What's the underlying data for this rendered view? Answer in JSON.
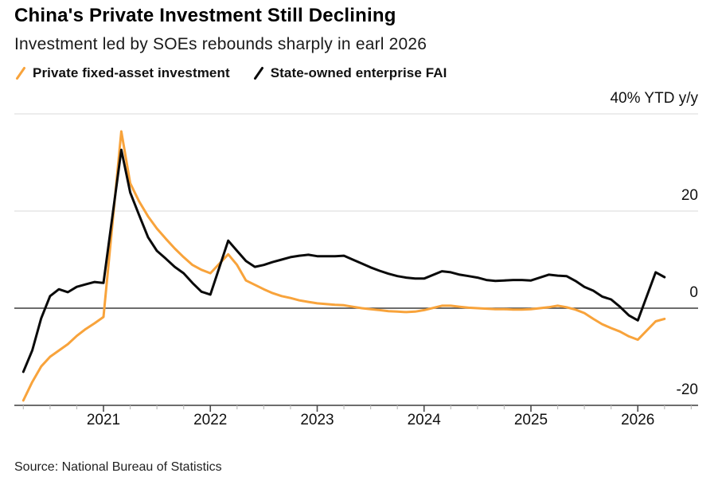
{
  "header": {
    "title": "China's Private Investment Still Declining",
    "subtitle": "Investment led by SOEs rebounds sharply in earl 2026"
  },
  "source": "Source: National Bureau of Statistics",
  "chart_data": {
    "type": "line",
    "title": "China's Private Investment Still Declining",
    "subtitle": "Investment led by SOEs rebounds sharply in earl 2026",
    "ylabel": "% YTD y/y",
    "ylim": [
      -20,
      40
    ],
    "grid": "horizontal",
    "legend_position": "top-left",
    "y_ticks": [
      {
        "value": 40,
        "label": "40% YTD y/y"
      },
      {
        "value": 20,
        "label": "20"
      },
      {
        "value": 0,
        "label": "0"
      },
      {
        "value": -20,
        "label": "-20"
      }
    ],
    "x_ticks": [
      {
        "value": 2021,
        "label": "2021"
      },
      {
        "value": 2022,
        "label": "2022"
      },
      {
        "value": 2023,
        "label": "2023"
      },
      {
        "value": 2024,
        "label": "2024"
      },
      {
        "value": 2025,
        "label": "2025"
      },
      {
        "value": 2026,
        "label": "2026"
      }
    ],
    "series": [
      {
        "name": "Private fixed-asset investment",
        "color": "#F8A33B",
        "points": [
          [
            2020.25,
            -19.0
          ],
          [
            2020.333,
            -15.2
          ],
          [
            2020.417,
            -12.0
          ],
          [
            2020.5,
            -10.0
          ],
          [
            2020.583,
            -8.7
          ],
          [
            2020.667,
            -7.4
          ],
          [
            2020.75,
            -5.7
          ],
          [
            2020.833,
            -4.3
          ],
          [
            2020.917,
            -3.1
          ],
          [
            2021.0,
            -1.8
          ],
          [
            2021.167,
            36.4
          ],
          [
            2021.25,
            25.7
          ],
          [
            2021.333,
            22.0
          ],
          [
            2021.417,
            18.9
          ],
          [
            2021.5,
            16.4
          ],
          [
            2021.583,
            14.3
          ],
          [
            2021.667,
            12.3
          ],
          [
            2021.75,
            10.5
          ],
          [
            2021.833,
            8.9
          ],
          [
            2021.917,
            7.9
          ],
          [
            2022.0,
            7.2
          ],
          [
            2022.167,
            11.1
          ],
          [
            2022.25,
            8.9
          ],
          [
            2022.333,
            5.7
          ],
          [
            2022.417,
            4.8
          ],
          [
            2022.5,
            3.9
          ],
          [
            2022.583,
            3.1
          ],
          [
            2022.667,
            2.5
          ],
          [
            2022.75,
            2.1
          ],
          [
            2022.833,
            1.6
          ],
          [
            2022.917,
            1.3
          ],
          [
            2023.0,
            1.0
          ],
          [
            2023.167,
            0.7
          ],
          [
            2023.25,
            0.6
          ],
          [
            2023.333,
            0.3
          ],
          [
            2023.417,
            0.0
          ],
          [
            2023.5,
            -0.2
          ],
          [
            2023.583,
            -0.4
          ],
          [
            2023.667,
            -0.6
          ],
          [
            2023.75,
            -0.7
          ],
          [
            2023.833,
            -0.8
          ],
          [
            2023.917,
            -0.7
          ],
          [
            2024.0,
            -0.4
          ],
          [
            2024.167,
            0.5
          ],
          [
            2024.25,
            0.5
          ],
          [
            2024.333,
            0.3
          ],
          [
            2024.417,
            0.1
          ],
          [
            2024.5,
            0.0
          ],
          [
            2024.583,
            -0.1
          ],
          [
            2024.667,
            -0.2
          ],
          [
            2024.75,
            -0.2
          ],
          [
            2024.833,
            -0.3
          ],
          [
            2024.917,
            -0.3
          ],
          [
            2025.0,
            -0.2
          ],
          [
            2025.167,
            0.2
          ],
          [
            2025.25,
            0.5
          ],
          [
            2025.333,
            0.2
          ],
          [
            2025.417,
            -0.3
          ],
          [
            2025.5,
            -1.0
          ],
          [
            2025.583,
            -2.2
          ],
          [
            2025.667,
            -3.3
          ],
          [
            2025.75,
            -4.1
          ],
          [
            2025.833,
            -4.8
          ],
          [
            2025.917,
            -5.8
          ],
          [
            2026.0,
            -6.5
          ],
          [
            2026.167,
            -2.7
          ],
          [
            2026.25,
            -2.2
          ]
        ]
      },
      {
        "name": "State-owned enterprise FAI",
        "color": "#0a0a0a",
        "points": [
          [
            2020.25,
            -13.1
          ],
          [
            2020.333,
            -8.7
          ],
          [
            2020.417,
            -2.1
          ],
          [
            2020.5,
            2.5
          ],
          [
            2020.583,
            3.9
          ],
          [
            2020.667,
            3.3
          ],
          [
            2020.75,
            4.4
          ],
          [
            2020.833,
            4.9
          ],
          [
            2020.917,
            5.4
          ],
          [
            2021.0,
            5.2
          ],
          [
            2021.167,
            32.6
          ],
          [
            2021.25,
            23.8
          ],
          [
            2021.333,
            19.2
          ],
          [
            2021.417,
            14.6
          ],
          [
            2021.5,
            11.8
          ],
          [
            2021.583,
            10.2
          ],
          [
            2021.667,
            8.5
          ],
          [
            2021.75,
            7.2
          ],
          [
            2021.833,
            5.2
          ],
          [
            2021.917,
            3.4
          ],
          [
            2022.0,
            2.8
          ],
          [
            2022.167,
            13.9
          ],
          [
            2022.25,
            11.8
          ],
          [
            2022.333,
            9.7
          ],
          [
            2022.417,
            8.5
          ],
          [
            2022.5,
            8.9
          ],
          [
            2022.583,
            9.5
          ],
          [
            2022.667,
            10.0
          ],
          [
            2022.75,
            10.5
          ],
          [
            2022.833,
            10.8
          ],
          [
            2022.917,
            11.0
          ],
          [
            2023.0,
            10.7
          ],
          [
            2023.167,
            10.7
          ],
          [
            2023.25,
            10.8
          ],
          [
            2023.333,
            10.0
          ],
          [
            2023.417,
            9.2
          ],
          [
            2023.5,
            8.4
          ],
          [
            2023.583,
            7.7
          ],
          [
            2023.667,
            7.1
          ],
          [
            2023.75,
            6.6
          ],
          [
            2023.833,
            6.3
          ],
          [
            2023.917,
            6.1
          ],
          [
            2024.0,
            6.1
          ],
          [
            2024.167,
            7.6
          ],
          [
            2024.25,
            7.4
          ],
          [
            2024.333,
            6.9
          ],
          [
            2024.417,
            6.6
          ],
          [
            2024.5,
            6.3
          ],
          [
            2024.583,
            5.8
          ],
          [
            2024.667,
            5.6
          ],
          [
            2024.75,
            5.7
          ],
          [
            2024.833,
            5.8
          ],
          [
            2024.917,
            5.8
          ],
          [
            2025.0,
            5.7
          ],
          [
            2025.167,
            6.9
          ],
          [
            2025.25,
            6.7
          ],
          [
            2025.333,
            6.6
          ],
          [
            2025.417,
            5.6
          ],
          [
            2025.5,
            4.4
          ],
          [
            2025.583,
            3.6
          ],
          [
            2025.667,
            2.4
          ],
          [
            2025.75,
            1.8
          ],
          [
            2025.833,
            0.3
          ],
          [
            2025.917,
            -1.5
          ],
          [
            2026.0,
            -2.5
          ],
          [
            2026.167,
            7.4
          ],
          [
            2026.25,
            6.4
          ]
        ]
      }
    ]
  }
}
